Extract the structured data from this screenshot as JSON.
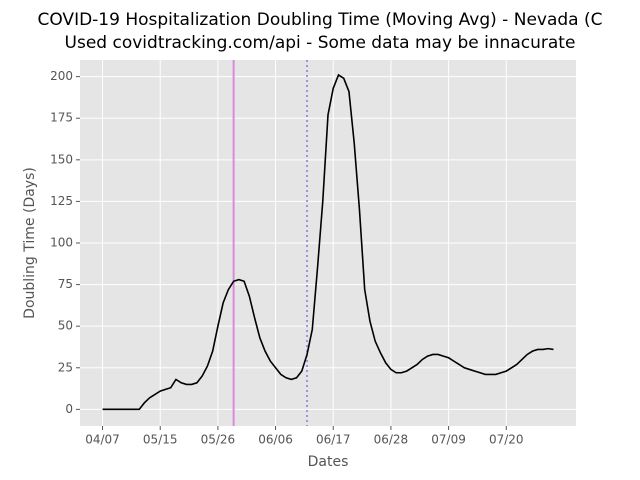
{
  "chart_data": {
    "type": "line",
    "title": "COVID-19 Hospitalization Doubling Time (Moving Avg) - Nevada (C",
    "subtitle": "Used covidtracking.com/api - Some data may be innacurate",
    "x_label": "Dates",
    "y_label": "Doubling Time (Days)",
    "categories": [
      "04/07",
      null,
      null,
      null,
      null,
      null,
      null,
      null,
      null,
      null,
      null,
      "05/15",
      null,
      null,
      null,
      null,
      null,
      null,
      null,
      null,
      null,
      null,
      "05/26",
      null,
      null,
      null,
      null,
      null,
      null,
      null,
      null,
      null,
      null,
      "06/06",
      null,
      null,
      null,
      null,
      null,
      null,
      null,
      null,
      null,
      null,
      "06/17",
      null,
      null,
      null,
      null,
      null,
      null,
      null,
      null,
      null,
      null,
      "06/28",
      null,
      null,
      null,
      null,
      null,
      null,
      null,
      null,
      null,
      null,
      "07/09",
      null,
      null,
      null,
      null,
      null,
      null,
      null,
      null,
      null,
      null,
      "07/20",
      null,
      null,
      null,
      null,
      null,
      null,
      null,
      null,
      null
    ],
    "values": [
      0,
      0,
      0,
      0,
      0,
      0,
      0,
      0,
      4,
      7,
      9,
      11,
      12,
      13,
      18,
      16,
      15,
      15,
      16,
      20,
      26,
      35,
      50,
      64,
      72,
      77,
      78,
      77,
      68,
      55,
      43,
      35,
      29,
      25,
      21,
      19,
      18,
      19,
      23,
      33,
      48,
      85,
      125,
      177,
      193,
      201,
      199,
      191,
      160,
      120,
      72,
      53,
      41,
      34,
      28,
      24,
      22,
      22,
      23,
      25,
      27,
      30,
      32,
      33,
      33,
      32,
      31,
      29,
      27,
      25,
      24,
      23,
      22,
      21,
      21,
      21,
      22,
      23,
      25,
      27,
      30,
      33,
      35,
      36,
      36,
      36.5,
      36
    ],
    "color": "#000000",
    "vlines": [
      {
        "x": 25,
        "color": "#dd88dd",
        "style": "solid"
      },
      {
        "x": 39,
        "color": "#9370db",
        "style": "dotted"
      }
    ],
    "ylim": [
      -10,
      210
    ],
    "yticks": [
      0,
      25,
      50,
      75,
      100,
      125,
      150,
      175,
      200
    ],
    "grid": true
  }
}
